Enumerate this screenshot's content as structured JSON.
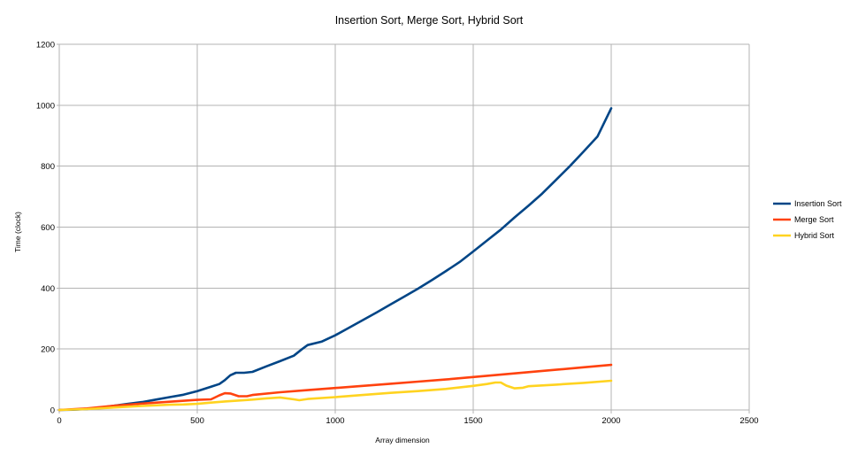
{
  "chart_data": {
    "type": "line",
    "title": "Insertion Sort, Merge Sort, Hybrid Sort",
    "xlabel": "Array dimension",
    "ylabel": "Time (clock)",
    "xlim": [
      0,
      2500
    ],
    "ylim": [
      0,
      1200
    ],
    "xticks": [
      0,
      500,
      1000,
      1500,
      2000,
      2500
    ],
    "yticks": [
      0,
      200,
      400,
      600,
      800,
      1000,
      1200
    ],
    "grid": true,
    "legend_position": "right",
    "series": [
      {
        "name": "Insertion Sort",
        "color": "#004586",
        "points": [
          [
            0,
            0
          ],
          [
            50,
            1
          ],
          [
            100,
            3
          ],
          [
            150,
            8
          ],
          [
            200,
            14
          ],
          [
            250,
            20
          ],
          [
            300,
            26
          ],
          [
            350,
            34
          ],
          [
            400,
            42
          ],
          [
            450,
            50
          ],
          [
            500,
            62
          ],
          [
            550,
            76
          ],
          [
            580,
            85
          ],
          [
            600,
            98
          ],
          [
            620,
            114
          ],
          [
            640,
            122
          ],
          [
            670,
            122
          ],
          [
            700,
            125
          ],
          [
            750,
            143
          ],
          [
            800,
            160
          ],
          [
            850,
            178
          ],
          [
            880,
            200
          ],
          [
            900,
            213
          ],
          [
            950,
            224
          ],
          [
            1000,
            245
          ],
          [
            1050,
            270
          ],
          [
            1100,
            295
          ],
          [
            1150,
            320
          ],
          [
            1200,
            346
          ],
          [
            1250,
            372
          ],
          [
            1300,
            398
          ],
          [
            1350,
            426
          ],
          [
            1400,
            455
          ],
          [
            1450,
            485
          ],
          [
            1500,
            520
          ],
          [
            1550,
            556
          ],
          [
            1600,
            592
          ],
          [
            1650,
            632
          ],
          [
            1700,
            670
          ],
          [
            1750,
            710
          ],
          [
            1800,
            755
          ],
          [
            1850,
            800
          ],
          [
            1900,
            848
          ],
          [
            1950,
            897
          ],
          [
            2000,
            990
          ]
        ]
      },
      {
        "name": "Merge Sort",
        "color": "#ff420e",
        "points": [
          [
            0,
            0
          ],
          [
            100,
            5
          ],
          [
            200,
            14
          ],
          [
            300,
            21
          ],
          [
            400,
            27
          ],
          [
            500,
            33
          ],
          [
            550,
            35
          ],
          [
            580,
            48
          ],
          [
            600,
            55
          ],
          [
            620,
            54
          ],
          [
            650,
            45
          ],
          [
            680,
            45
          ],
          [
            700,
            49
          ],
          [
            800,
            58
          ],
          [
            900,
            65
          ],
          [
            1000,
            72
          ],
          [
            1100,
            79
          ],
          [
            1200,
            86
          ],
          [
            1300,
            93
          ],
          [
            1400,
            100
          ],
          [
            1500,
            108
          ],
          [
            1600,
            116
          ],
          [
            1700,
            124
          ],
          [
            1800,
            132
          ],
          [
            1900,
            140
          ],
          [
            2000,
            148
          ]
        ]
      },
      {
        "name": "Hybrid Sort",
        "color": "#ffd320",
        "points": [
          [
            0,
            0
          ],
          [
            100,
            3
          ],
          [
            200,
            8
          ],
          [
            300,
            13
          ],
          [
            400,
            17
          ],
          [
            450,
            18
          ],
          [
            500,
            20
          ],
          [
            550,
            24
          ],
          [
            600,
            28
          ],
          [
            700,
            34
          ],
          [
            750,
            38
          ],
          [
            800,
            41
          ],
          [
            850,
            35
          ],
          [
            870,
            32
          ],
          [
            900,
            36
          ],
          [
            1000,
            42
          ],
          [
            1100,
            49
          ],
          [
            1200,
            56
          ],
          [
            1300,
            62
          ],
          [
            1400,
            69
          ],
          [
            1500,
            79
          ],
          [
            1550,
            85
          ],
          [
            1580,
            90
          ],
          [
            1600,
            90
          ],
          [
            1620,
            80
          ],
          [
            1650,
            71
          ],
          [
            1680,
            73
          ],
          [
            1700,
            78
          ],
          [
            1800,
            83
          ],
          [
            1900,
            89
          ],
          [
            2000,
            96
          ]
        ]
      }
    ]
  }
}
